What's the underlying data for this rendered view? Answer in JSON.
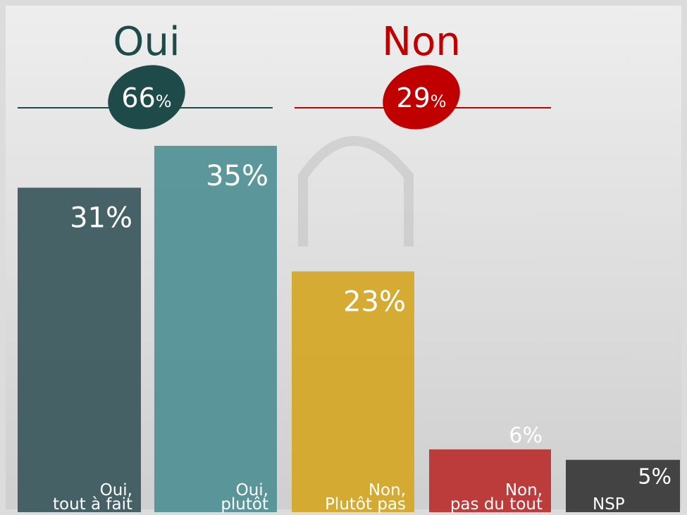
{
  "chart_data": {
    "type": "bar",
    "groups": [
      {
        "name": "Oui",
        "value": 66,
        "value_label": "66%",
        "color": "#1f4a4a"
      },
      {
        "name": "Non",
        "value": 29,
        "value_label": "29%",
        "color": "#c00000"
      }
    ],
    "categories": [
      [
        "Oui,",
        "tout à fait"
      ],
      [
        "Oui,",
        "plutôt"
      ],
      [
        "Non,",
        "Plutôt pas"
      ],
      [
        "Non,",
        "pas du tout"
      ],
      [
        "NSP"
      ]
    ],
    "values": [
      31,
      35,
      23,
      6,
      5
    ],
    "value_labels": [
      "31%",
      "35%",
      "23%",
      "6%",
      "5%"
    ],
    "colors": [
      "#35545a",
      "#4b8e92",
      "#d4a520",
      "#b92b2b",
      "#333333"
    ]
  }
}
